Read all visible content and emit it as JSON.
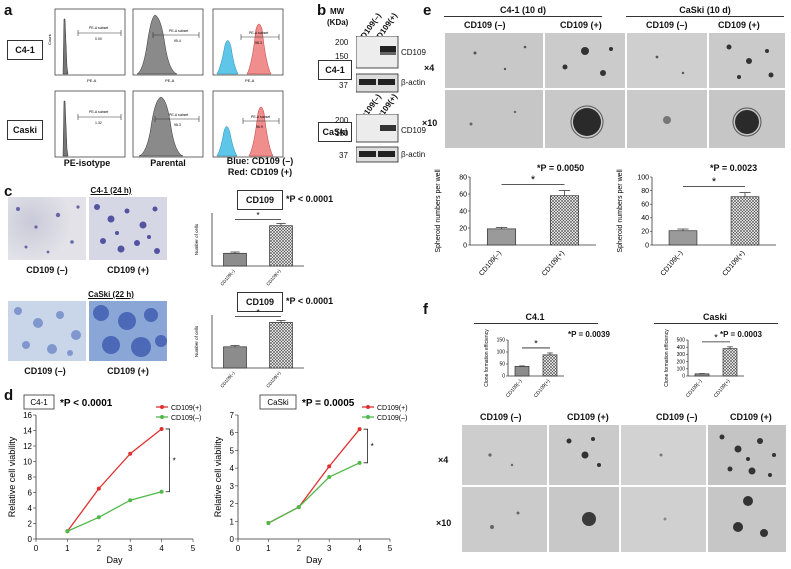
{
  "panel_labels": {
    "a": "a",
    "b": "b",
    "c": "c",
    "d": "d",
    "e": "e",
    "f": "f"
  },
  "a": {
    "rows": [
      "C4-1",
      "Caski"
    ],
    "captions": [
      "PE-isotype",
      "Parental",
      "Blue: CD109 (–)",
      "Red: CD109 (+)"
    ],
    "axis": {
      "x": "PE-A",
      "y": "Count"
    },
    "subset_label": "PE-A subset",
    "values": [
      [
        "0.00",
        "95.4",
        "98.3"
      ],
      [
        "1.32",
        "98.3",
        "96.9"
      ]
    ]
  },
  "b": {
    "mw_header": "MW",
    "mw_unit": "(KDa)",
    "lanes": [
      "CD109(–)",
      "CD109(+)"
    ],
    "blots": [
      {
        "cell": "C4-1",
        "markers": [
          "200",
          "150",
          "37"
        ],
        "bands": [
          "CD109",
          "β-actin"
        ]
      },
      {
        "cell": "CaSki",
        "markers": [
          "200",
          "150",
          "37"
        ],
        "bands": [
          "CD109",
          "β-actin"
        ]
      }
    ]
  },
  "c": {
    "blocks": [
      {
        "title": "C4-1 (24 h)",
        "box": "CD109",
        "p": "*P < 0.0001",
        "groups": [
          "CD109 (–)",
          "CD109 (+)"
        ]
      },
      {
        "title": "CaSki (22 h)",
        "box": "CD109",
        "p": "*P < 0.0001",
        "groups": [
          "CD109 (–)",
          "CD109 (+)"
        ]
      }
    ],
    "ylabel": "Number of cells",
    "star": "*"
  },
  "d": {
    "xlabel": "Day",
    "ylabel": "Relative cell viability",
    "star": "*"
  },
  "e": {
    "titles": [
      "C4-1 (10 d)",
      "CaSki (10 d)"
    ],
    "groups": [
      "CD109 (–)",
      "CD109 (+)",
      "CD109 (–)",
      "CD109 (+)"
    ],
    "mags": [
      "×4",
      "×10"
    ],
    "p": [
      "*P = 0.0050",
      "*P = 0.0023"
    ],
    "ylabel": "Spheroid numbers per well",
    "star": "*"
  },
  "f": {
    "titles": [
      "C4.1",
      "Caski"
    ],
    "p": [
      "*P = 0.0039",
      "*P = 0.0003"
    ],
    "ylabel": "Clone formation efficiency",
    "groups": [
      "CD109 (–)",
      "CD109 (+)",
      "CD109 (–)",
      "CD109 (+)"
    ],
    "mags": [
      "×4",
      "×10"
    ],
    "star": "*"
  },
  "chart_data": [
    {
      "id": "c-c41",
      "type": "bar",
      "categories": [
        "CD109(–)",
        "CD109(+)"
      ],
      "values": [
        120,
        380
      ],
      "errors": [
        12,
        20
      ],
      "ylabel": "Number of cells",
      "ylim": [
        0,
        500
      ],
      "title": "CD109"
    },
    {
      "id": "c-caski",
      "type": "bar",
      "categories": [
        "CD109(–)",
        "CD109(+)"
      ],
      "values": [
        200,
        430
      ],
      "errors": [
        12,
        18
      ],
      "ylabel": "Number of cells",
      "ylim": [
        0,
        500
      ],
      "title": "CD109"
    },
    {
      "id": "d-c41",
      "type": "line",
      "title": "C4-1",
      "x": [
        1,
        2,
        3,
        4
      ],
      "series": [
        {
          "name": "CD109(+)",
          "color": "#e03030",
          "values": [
            1,
            6.5,
            11,
            14.2
          ]
        },
        {
          "name": "CD109(–)",
          "color": "#50b848",
          "values": [
            1,
            2.8,
            5,
            6.1
          ]
        }
      ],
      "xlabel": "Day",
      "ylabel": "Relative cell viability",
      "xlim": [
        0,
        5
      ],
      "ylim": [
        0,
        16
      ],
      "xticks": [
        0,
        1,
        2,
        3,
        4,
        5
      ],
      "yticks": [
        0,
        2,
        4,
        6,
        8,
        10,
        12,
        14,
        16
      ],
      "p": "*P < 0.0001"
    },
    {
      "id": "d-caski",
      "type": "line",
      "title": "CaSki",
      "x": [
        1,
        2,
        3,
        4
      ],
      "series": [
        {
          "name": "CD109(+)",
          "color": "#e03030",
          "values": [
            0.9,
            1.8,
            4.1,
            6.2
          ]
        },
        {
          "name": "CD109(–)",
          "color": "#50b848",
          "values": [
            0.9,
            1.8,
            3.5,
            4.3
          ]
        }
      ],
      "xlabel": "Day",
      "ylabel": "Relative cell viability",
      "xlim": [
        0,
        5
      ],
      "ylim": [
        0,
        7
      ],
      "xticks": [
        0,
        1,
        2,
        3,
        4,
        5
      ],
      "yticks": [
        0,
        1,
        2,
        3,
        4,
        5,
        6,
        7
      ],
      "p": "*P = 0.0005"
    },
    {
      "id": "e-c41",
      "type": "bar",
      "categories": [
        "CD109(–)",
        "CD109(+)"
      ],
      "values": [
        19,
        58
      ],
      "errors": [
        1.5,
        6
      ],
      "ylabel": "Spheroid numbers per well",
      "ylim": [
        0,
        80
      ],
      "yticks": [
        0,
        20,
        40,
        60,
        80
      ]
    },
    {
      "id": "e-caski",
      "type": "bar",
      "categories": [
        "CD109(–)",
        "CD109(+)"
      ],
      "values": [
        21,
        71
      ],
      "errors": [
        2.5,
        6
      ],
      "ylabel": "Spheroid numbers per well",
      "ylim": [
        0,
        100
      ],
      "yticks": [
        0,
        20,
        40,
        60,
        80,
        100
      ]
    },
    {
      "id": "f-c41",
      "type": "bar",
      "categories": [
        "CD109(–)",
        "CD109(+)"
      ],
      "values": [
        40,
        88
      ],
      "errors": [
        2,
        8
      ],
      "ylabel": "Clone formation efficiency",
      "ylim": [
        0,
        150
      ],
      "yticks": [
        0,
        50,
        100,
        150
      ]
    },
    {
      "id": "f-caski",
      "type": "bar",
      "categories": [
        "CD109(–)",
        "CD109(+)"
      ],
      "values": [
        30,
        380
      ],
      "errors": [
        3,
        25
      ],
      "ylabel": "Clone formation efficiency",
      "ylim": [
        0,
        500
      ],
      "yticks": [
        0,
        100,
        200,
        300,
        400,
        500
      ]
    }
  ]
}
